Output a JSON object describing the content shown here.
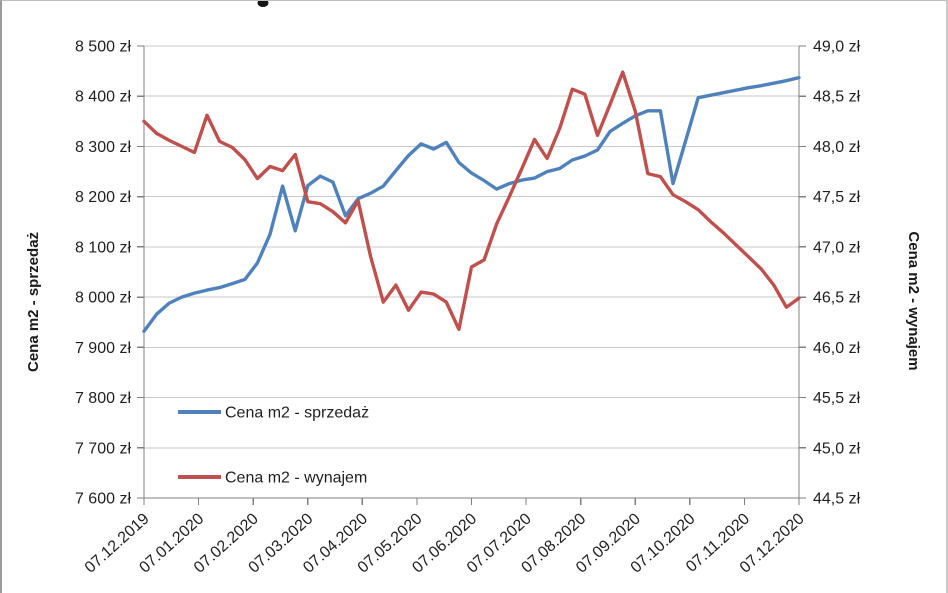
{
  "chart_data": {
    "type": "line",
    "title": "",
    "x_tick_labels": [
      "07.12.2019",
      "07.01.2020",
      "07.02.2020",
      "07.03.2020",
      "07.04.2020",
      "07.05.2020",
      "07.06.2020",
      "07.07.2020",
      "07.08.2020",
      "07.09.2020",
      "07.10.2020",
      "07.11.2020",
      "07.12.2020"
    ],
    "left_axis": {
      "title": "Cena m2 - sprzedaż",
      "min": 7600,
      "max": 8500,
      "step": 100,
      "tick_labels": [
        "8 500 zł",
        "8 400 zł",
        "8 300 zł",
        "8 200 zł",
        "8 100 zł",
        "8 000 zł",
        "7 900 zł",
        "7 800 zł",
        "7 700 zł",
        "7 600 zł"
      ]
    },
    "right_axis": {
      "title": "Cena m2 - wynajem",
      "min": 44.5,
      "max": 49.0,
      "step": 0.5,
      "tick_labels": [
        "49,0 zł",
        "48,5 zł",
        "48,0 zł",
        "47,5 zł",
        "47,0 zł",
        "46,5 zł",
        "46,0 zł",
        "45,5 zł",
        "45,0 zł",
        "44,5 zł"
      ]
    },
    "series": [
      {
        "name": "Cena m2 - sprzedaż",
        "axis": "left",
        "color": "#4F81BD",
        "values": [
          7932,
          7966,
          7988,
          8000,
          8008,
          8014,
          8019,
          8027,
          8035,
          8068,
          8125,
          8221,
          8132,
          8222,
          8241,
          8229,
          8162,
          8196,
          8207,
          8221,
          8252,
          8282,
          8305,
          8295,
          8308,
          8268,
          8247,
          8232,
          8215,
          8226,
          8233,
          8237,
          8250,
          8256,
          8273,
          8281,
          8293,
          8330,
          8346,
          8361,
          8371,
          8371,
          8226,
          8311,
          8397,
          8402,
          8407,
          8412,
          8417,
          8421,
          8426,
          8431,
          8437
        ]
      },
      {
        "name": "Cena m2 - wynajem",
        "axis": "right",
        "color": "#C0504D",
        "values": [
          48.25,
          48.13,
          48.06,
          48.0,
          47.94,
          48.31,
          48.05,
          47.99,
          47.87,
          47.68,
          47.8,
          47.76,
          47.92,
          47.45,
          47.43,
          47.35,
          47.24,
          47.46,
          46.9,
          46.45,
          46.62,
          46.37,
          46.55,
          46.53,
          46.45,
          46.18,
          46.8,
          46.87,
          47.23,
          47.5,
          47.78,
          48.07,
          47.88,
          48.18,
          48.57,
          48.52,
          48.11,
          48.42,
          48.74,
          48.35,
          47.73,
          47.7,
          47.52,
          47.45,
          47.37,
          47.25,
          47.14,
          47.02,
          46.9,
          46.78,
          46.62,
          46.4,
          46.49
        ]
      }
    ],
    "legend": {
      "position": "inside-bottom-left",
      "entries": [
        "Cena m2 - sprzedaż",
        "Cena m2 - wynajem"
      ]
    },
    "grid": "horizontal",
    "colors": {
      "gridline": "#C9C9C9",
      "axis_line": "#808080",
      "text": "#1F1F1F"
    }
  }
}
